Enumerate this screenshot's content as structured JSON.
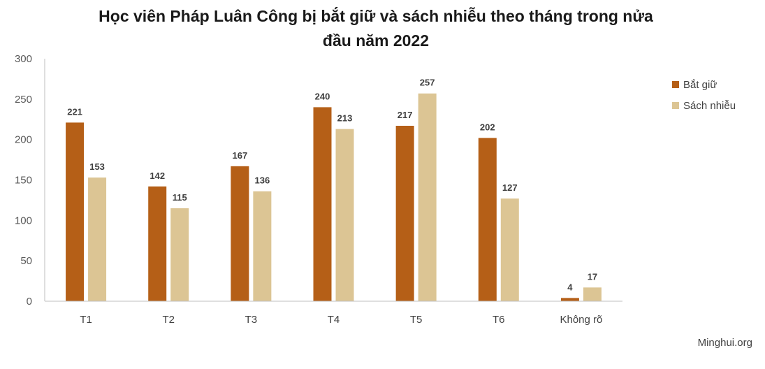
{
  "chart_data": {
    "type": "bar",
    "title_lines": [
      "Học viên Pháp Luân Công bị bắt giữ và sách nhiễu theo tháng trong nửa",
      "đầu năm 2022"
    ],
    "categories": [
      "T1",
      "T2",
      "T3",
      "T4",
      "T5",
      "T6",
      "Không rõ"
    ],
    "series": [
      {
        "name": "Bắt giữ",
        "color": "#b55f17",
        "values": [
          221,
          142,
          167,
          240,
          217,
          202,
          4
        ]
      },
      {
        "name": "Sách nhiễu",
        "color": "#dcc594",
        "values": [
          153,
          115,
          136,
          213,
          257,
          127,
          17
        ]
      }
    ],
    "ylim": [
      0,
      300
    ],
    "yticks": [
      0,
      50,
      100,
      150,
      200,
      250,
      300
    ],
    "grid": false,
    "legend_position": "right",
    "data_labels": true
  },
  "source": "Minghui.org"
}
